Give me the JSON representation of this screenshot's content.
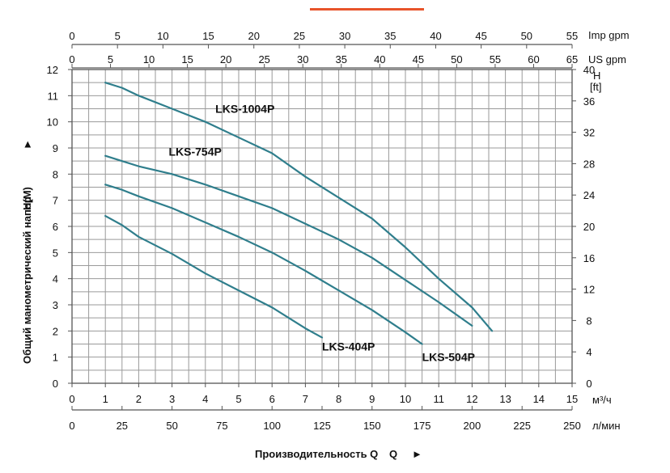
{
  "chart_data": {
    "type": "line",
    "accent_bar_color": "#e8542a",
    "curve_color": "#2f7e8c",
    "grid": true,
    "x": {
      "label": "Производительность Q",
      "arrow": "►",
      "unit": "м³/ч",
      "range": [
        0,
        15
      ],
      "ticks": [
        "0",
        "1",
        "2",
        "3",
        "4",
        "5",
        "6",
        "7",
        "8",
        "9",
        "10",
        "11",
        "12",
        "13",
        "14",
        "15"
      ]
    },
    "x_secondary_bottom": {
      "unit": "л/мин",
      "range": [
        0,
        250
      ],
      "ticks": [
        "0",
        "25",
        "50",
        "75",
        "100",
        "125",
        "150",
        "175",
        "200",
        "225",
        "250"
      ]
    },
    "x_top_imp": {
      "unit": "Imp gpm",
      "range": [
        0,
        55
      ],
      "ticks": [
        "0",
        "5",
        "10",
        "15",
        "20",
        "25",
        "30",
        "35",
        "40",
        "45",
        "50",
        "55"
      ]
    },
    "x_top_us": {
      "unit": "US gpm",
      "range": [
        0,
        65
      ],
      "ticks": [
        "0",
        "5",
        "10",
        "15",
        "20",
        "25",
        "30",
        "35",
        "40",
        "45",
        "50",
        "55",
        "60",
        "65"
      ]
    },
    "y": {
      "label": "Общий манометрический напор",
      "label_unit": "H(M)",
      "arrow": "►",
      "range": [
        0,
        12
      ],
      "ticks": [
        "0",
        "1",
        "2",
        "3",
        "4",
        "5",
        "6",
        "7",
        "8",
        "9",
        "10",
        "11",
        "12"
      ]
    },
    "y_right": {
      "unit_line1": "H",
      "unit_line2": "[ft]",
      "range": [
        0,
        40
      ],
      "ticks": [
        "0",
        "4",
        "8",
        "12",
        "16",
        "20",
        "24",
        "28",
        "32",
        "36",
        "40"
      ]
    },
    "series": [
      {
        "name": "LKS-1004P",
        "x": [
          1,
          1.5,
          2,
          3,
          4,
          5,
          6,
          7,
          8,
          9,
          10,
          11,
          12,
          12.6
        ],
        "y": [
          11.5,
          11.3,
          11.0,
          10.5,
          10.0,
          9.4,
          8.8,
          7.9,
          7.1,
          6.3,
          5.2,
          4.0,
          2.9,
          2.0
        ],
        "label_pos": [
          4.3,
          10.35
        ]
      },
      {
        "name": "LKS-754P",
        "x": [
          1,
          1.5,
          2,
          3,
          4,
          5,
          6,
          7,
          8,
          9,
          10,
          11,
          12
        ],
        "y": [
          8.7,
          8.5,
          8.3,
          8.0,
          7.6,
          7.15,
          6.7,
          6.1,
          5.5,
          4.8,
          3.95,
          3.1,
          2.2
        ],
        "label_pos": [
          2.9,
          8.7
        ]
      },
      {
        "name": "LKS-504P",
        "x": [
          1,
          1.5,
          2,
          3,
          4,
          5,
          6,
          7,
          8,
          9,
          10,
          10.5
        ],
        "y": [
          7.6,
          7.4,
          7.15,
          6.7,
          6.15,
          5.6,
          5.0,
          4.3,
          3.55,
          2.8,
          1.95,
          1.5
        ],
        "label_pos": [
          10.5,
          0.85
        ]
      },
      {
        "name": "LKS-404P",
        "x": [
          1,
          1.5,
          2,
          3,
          4,
          5,
          6,
          7,
          7.5
        ],
        "y": [
          6.4,
          6.05,
          5.6,
          4.95,
          4.2,
          3.55,
          2.9,
          2.1,
          1.75
        ],
        "label_pos": [
          7.5,
          1.25
        ]
      }
    ]
  }
}
